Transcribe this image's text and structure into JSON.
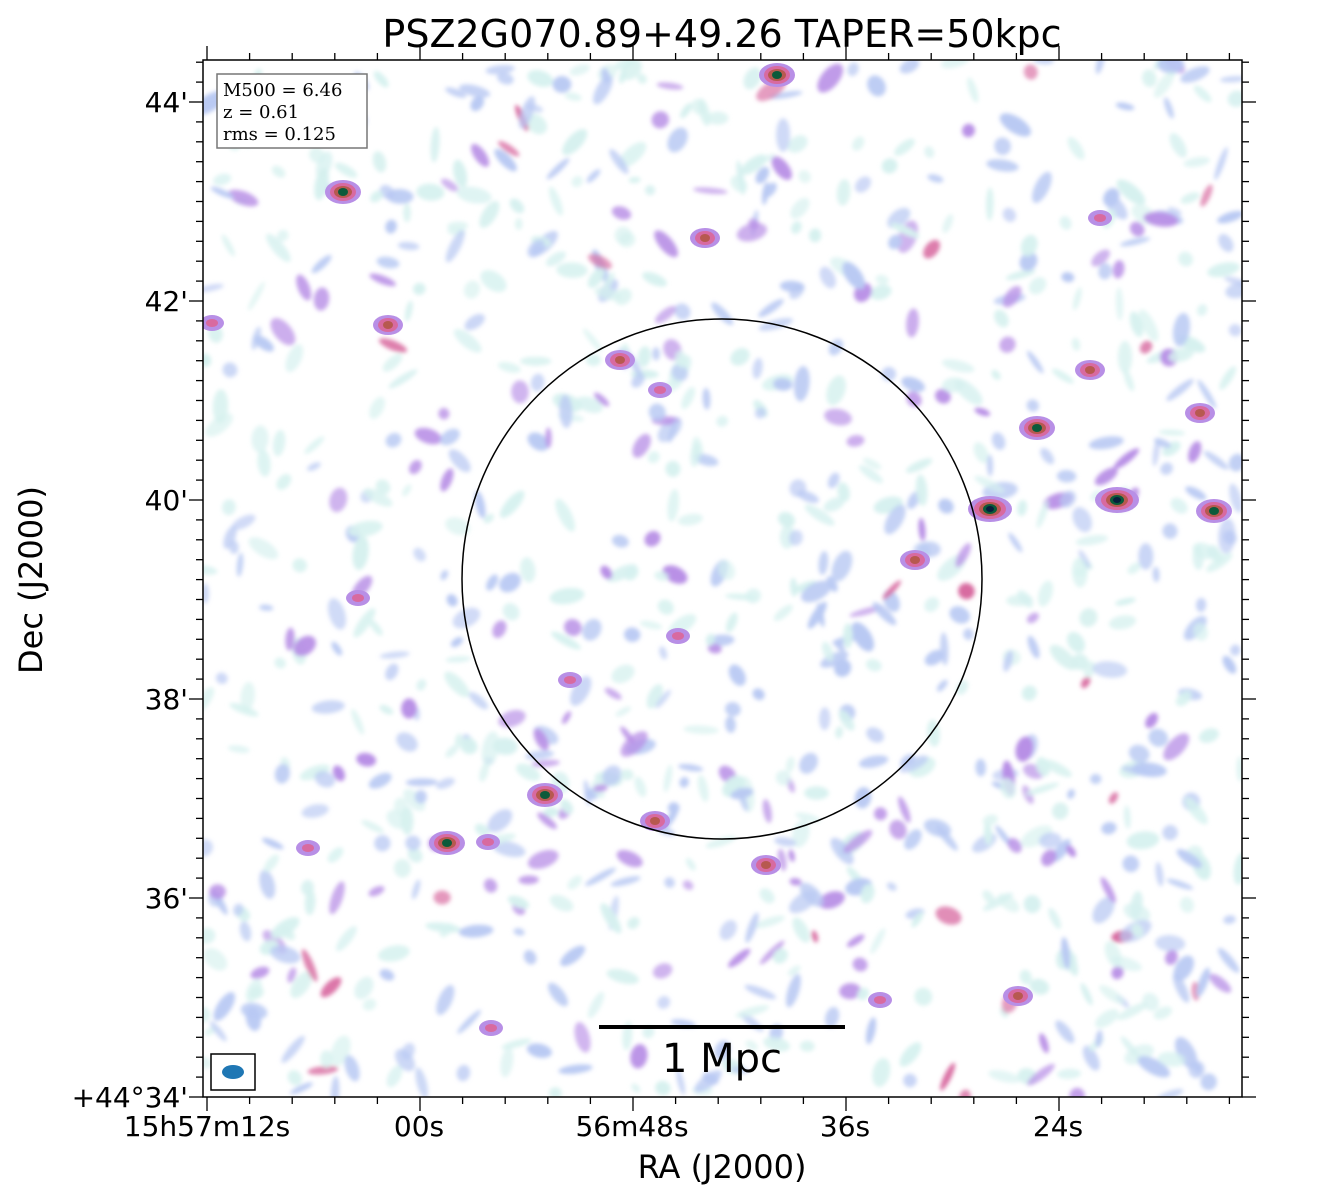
{
  "title": "PSZ2G070.89+49.26 TAPER=50kpc",
  "axes": {
    "xlabel": "RA (J2000)",
    "ylabel": "Dec (J2000)",
    "x_ticks": [
      "15h57m12s",
      "00s",
      "56m48s",
      "36s",
      "24s"
    ],
    "y_ticks": [
      "+44°34'",
      "36'",
      "38'",
      "40'",
      "42'",
      "44'"
    ]
  },
  "info_box": {
    "lines": [
      "M500 = 6.46",
      "z = 0.61",
      "rms = 0.125"
    ]
  },
  "scale_bar": {
    "label": "1 Mpc"
  },
  "colors": {
    "frame": "#000000",
    "beam": "#1f77b4",
    "colormap": [
      "#ffffff",
      "#d6f1ef",
      "#b9c9f3",
      "#b88fe6",
      "#d86aa0",
      "#b7594f",
      "#5f7a2f",
      "#0b5a3a",
      "#05203a"
    ]
  }
}
